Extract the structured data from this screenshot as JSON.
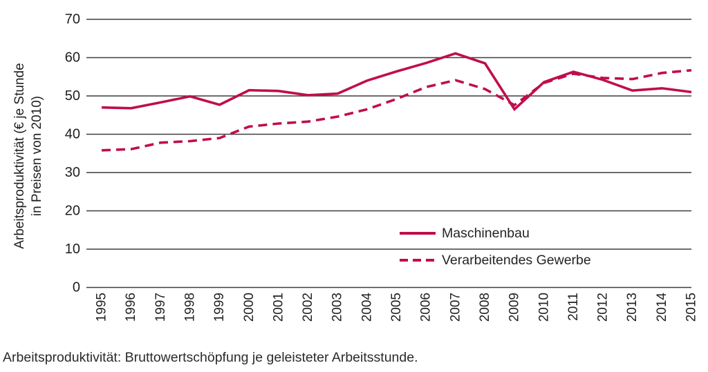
{
  "caption": "Arbeitsproduktivität: Bruttowertschöpfung je geleisteter Arbeitsstunde.",
  "colors": {
    "line": "#c00d4d",
    "grid": "#3d3d3d",
    "text": "#1f1f1f"
  },
  "chart_data": {
    "type": "line",
    "title": "",
    "xlabel": "",
    "ylabel": "Arbeitsproduktivität (€ je Stunde in Preisen von 2010)",
    "ylabel_lines": [
      "Arbeitsproduktivität (€ je Stunde",
      "in Preisen von 2010)"
    ],
    "x": [
      1995,
      1996,
      1997,
      1998,
      1999,
      2000,
      2001,
      2002,
      2003,
      2004,
      2005,
      2006,
      2007,
      2008,
      2009,
      2010,
      2011,
      2012,
      2013,
      2014,
      2015
    ],
    "series": [
      {
        "name": "Maschinenbau",
        "style": "solid",
        "values": [
          47.0,
          46.8,
          48.3,
          49.9,
          47.7,
          51.5,
          51.3,
          50.2,
          50.6,
          54.0,
          56.4,
          58.6,
          61.1,
          58.5,
          46.5,
          53.6,
          56.3,
          54.2,
          51.4,
          52.0,
          51.0
        ]
      },
      {
        "name": "Verarbeitendes Gewerbe",
        "style": "dashed",
        "values": [
          35.8,
          36.1,
          37.8,
          38.2,
          39.0,
          42.0,
          42.8,
          43.3,
          44.6,
          46.5,
          49.2,
          52.3,
          54.1,
          51.8,
          47.6,
          53.4,
          55.8,
          54.7,
          54.4,
          56.0,
          56.7
        ]
      }
    ],
    "yticks": [
      0,
      10,
      20,
      30,
      40,
      50,
      60,
      70
    ],
    "ylim": [
      0,
      70
    ],
    "grid": "horizontal-only",
    "legend_position": "inside-lower-center-right"
  }
}
